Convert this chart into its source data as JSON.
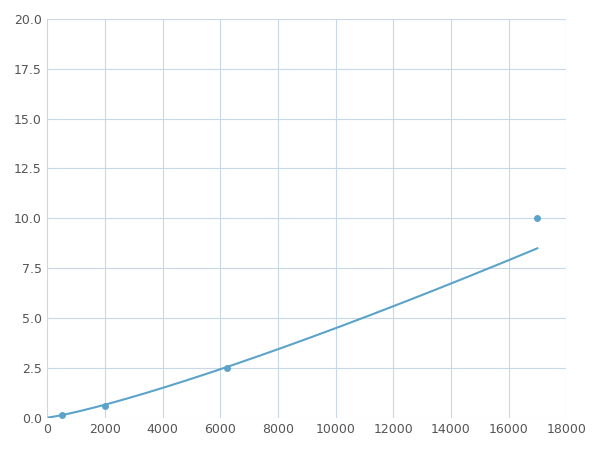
{
  "x_points": [
    250,
    500,
    1000,
    2000,
    6250,
    17000
  ],
  "y_points": [
    0.07,
    0.12,
    0.2,
    0.6,
    2.5,
    10.0
  ],
  "line_color": "#5ba3c9",
  "marker_color": "#5ba3c9",
  "marker_indices": [
    1,
    3,
    4,
    5
  ],
  "marker_size": 5,
  "xlim": [
    0,
    18000
  ],
  "ylim": [
    0,
    20
  ],
  "xticks": [
    0,
    2000,
    4000,
    6000,
    8000,
    10000,
    12000,
    14000,
    16000,
    18000
  ],
  "yticks": [
    0.0,
    2.5,
    5.0,
    7.5,
    10.0,
    12.5,
    15.0,
    17.5,
    20.0
  ],
  "grid_color": "#c8d8e8",
  "background_color": "#ffffff",
  "line_width": 1.5,
  "figsize": [
    6.0,
    4.5
  ],
  "dpi": 100
}
